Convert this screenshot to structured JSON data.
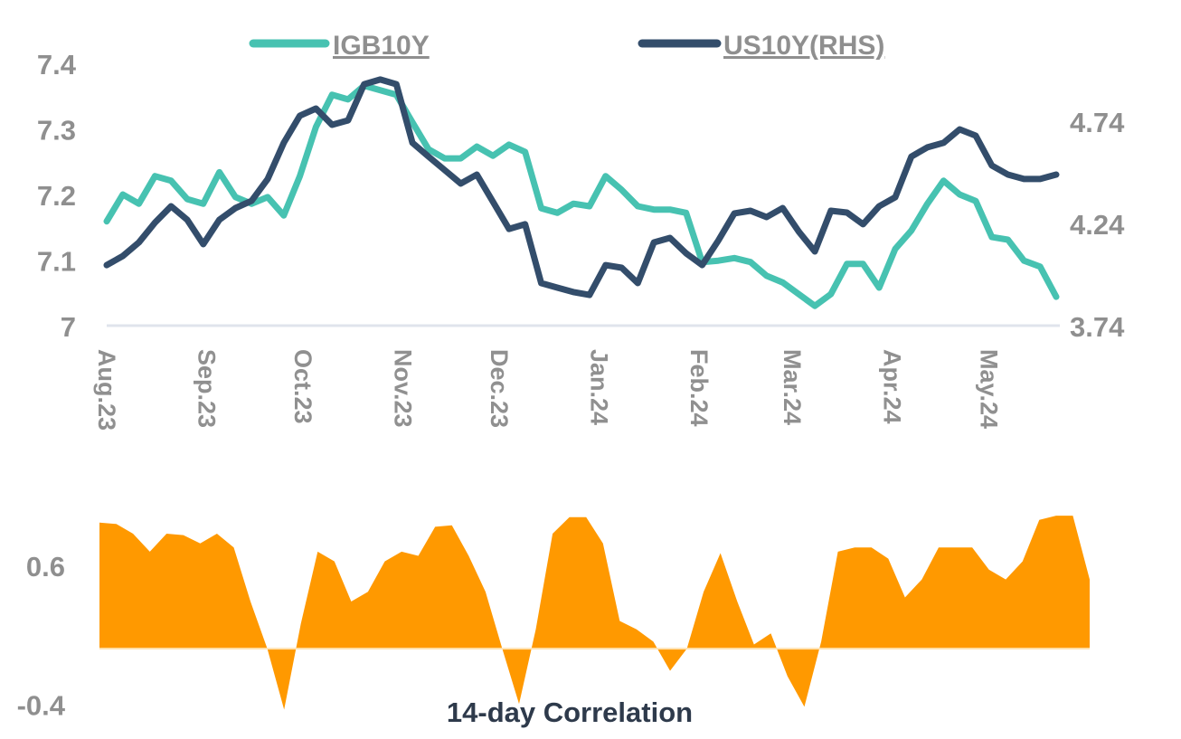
{
  "chart_data": [
    {
      "type": "line",
      "legend": [
        {
          "label": "IGB10Y",
          "color": "#47c2b1"
        },
        {
          "label": "US10Y(RHS)",
          "color": "#334d6b"
        }
      ],
      "legend_placement": "top",
      "x_tick_labels": [
        "Aug.23",
        "Sep.23",
        "Oct.23",
        "Nov.23",
        "Dec.23",
        "Jan.24",
        "Feb.24",
        "Mar.24",
        "Apr.24",
        "May.24"
      ],
      "x_tick_dates": [
        "2023-08-01",
        "2023-09-01",
        "2023-10-01",
        "2023-11-01",
        "2023-12-01",
        "2024-01-01",
        "2024-02-01",
        "2024-03-01",
        "2024-04-01",
        "2024-05-01"
      ],
      "xlim": [
        "2023-08-01",
        "2024-05-22"
      ],
      "y_left": {
        "ticks": [
          "7",
          "7.1",
          "7.2",
          "7.3",
          "7.4"
        ],
        "tick_values": [
          7,
          7.1,
          7.2,
          7.3,
          7.4
        ],
        "lim": [
          7,
          7.4
        ]
      },
      "y_right": {
        "ticks": [
          "3.74",
          "4.24",
          "4.74"
        ],
        "tick_values": [
          3.74,
          4.24,
          4.74
        ],
        "lim": [
          3.74,
          5.023
        ]
      },
      "grid": false,
      "dates": [
        "2023-08-01",
        "2023-08-06",
        "2023-08-11",
        "2023-08-16",
        "2023-08-21",
        "2023-08-26",
        "2023-08-31",
        "2023-09-05",
        "2023-09-10",
        "2023-09-15",
        "2023-09-20",
        "2023-09-25",
        "2023-09-30",
        "2023-10-05",
        "2023-10-10",
        "2023-10-15",
        "2023-10-20",
        "2023-10-25",
        "2023-10-30",
        "2023-11-04",
        "2023-11-09",
        "2023-11-14",
        "2023-11-19",
        "2023-11-24",
        "2023-11-29",
        "2023-12-04",
        "2023-12-09",
        "2023-12-14",
        "2023-12-19",
        "2023-12-24",
        "2023-12-29",
        "2024-01-03",
        "2024-01-08",
        "2024-01-13",
        "2024-01-18",
        "2024-01-23",
        "2024-01-28",
        "2024-02-02",
        "2024-02-07",
        "2024-02-12",
        "2024-02-17",
        "2024-02-22",
        "2024-02-27",
        "2024-03-03",
        "2024-03-08",
        "2024-03-13",
        "2024-03-18",
        "2024-03-23",
        "2024-03-28",
        "2024-04-02",
        "2024-04-07",
        "2024-04-12",
        "2024-04-17",
        "2024-04-22",
        "2024-04-27",
        "2024-05-02",
        "2024-05-07",
        "2024-05-12",
        "2024-05-17",
        "2024-05-22"
      ],
      "series": [
        {
          "name": "IGB10Y",
          "axis": "left",
          "color": "#47c2b1",
          "values": [
            7.159,
            7.2,
            7.186,
            7.228,
            7.221,
            7.193,
            7.186,
            7.234,
            7.196,
            7.186,
            7.196,
            7.168,
            7.228,
            7.303,
            7.352,
            7.345,
            7.366,
            7.359,
            7.352,
            7.31,
            7.269,
            7.255,
            7.255,
            7.273,
            7.259,
            7.276,
            7.265,
            7.179,
            7.172,
            7.186,
            7.182,
            7.228,
            7.207,
            7.182,
            7.177,
            7.177,
            7.172,
            7.097,
            7.099,
            7.103,
            7.097,
            7.076,
            7.066,
            7.048,
            7.03,
            7.048,
            7.094,
            7.094,
            7.058,
            7.117,
            7.145,
            7.186,
            7.221,
            7.2,
            7.19,
            7.135,
            7.131,
            7.099,
            7.09,
            7.044
          ]
        },
        {
          "name": "US10Y(RHS)",
          "axis": "right",
          "color": "#334d6b",
          "values": [
            4.036,
            4.08,
            4.147,
            4.244,
            4.324,
            4.258,
            4.138,
            4.258,
            4.315,
            4.35,
            4.457,
            4.634,
            4.767,
            4.802,
            4.722,
            4.744,
            4.921,
            4.944,
            4.921,
            4.634,
            4.567,
            4.501,
            4.435,
            4.479,
            4.346,
            4.213,
            4.236,
            3.948,
            3.926,
            3.904,
            3.89,
            4.036,
            4.023,
            3.948,
            4.147,
            4.169,
            4.094,
            4.036,
            4.156,
            4.289,
            4.302,
            4.271,
            4.315,
            4.2,
            4.103,
            4.302,
            4.293,
            4.236,
            4.324,
            4.368,
            4.567,
            4.612,
            4.634,
            4.7,
            4.669,
            4.523,
            4.479,
            4.457,
            4.457,
            4.479
          ]
        }
      ]
    },
    {
      "type": "area",
      "title": "14-day Correlation",
      "y_ticks": [
        "0.6",
        "-0.4"
      ],
      "y_tick_values": [
        0.6,
        -0.4
      ],
      "ylim": [
        -0.45,
        1.0
      ],
      "color": "#ff9900",
      "grid": false,
      "dates": [
        "2023-08-01",
        "2023-08-06",
        "2023-08-11",
        "2023-08-16",
        "2023-08-21",
        "2023-08-26",
        "2023-08-31",
        "2023-09-05",
        "2023-09-10",
        "2023-09-15",
        "2023-09-20",
        "2023-09-25",
        "2023-09-30",
        "2023-10-05",
        "2023-10-10",
        "2023-10-15",
        "2023-10-20",
        "2023-10-25",
        "2023-10-30",
        "2023-11-04",
        "2023-11-09",
        "2023-11-14",
        "2023-11-19",
        "2023-11-24",
        "2023-11-29",
        "2023-12-04",
        "2023-12-09",
        "2023-12-14",
        "2023-12-19",
        "2023-12-24",
        "2023-12-29",
        "2024-01-03",
        "2024-01-08",
        "2024-01-13",
        "2024-01-18",
        "2024-01-23",
        "2024-01-28",
        "2024-02-02",
        "2024-02-07",
        "2024-02-12",
        "2024-02-17",
        "2024-02-22",
        "2024-02-27",
        "2024-03-03",
        "2024-03-08",
        "2024-03-13",
        "2024-03-18",
        "2024-03-23",
        "2024-03-28",
        "2024-04-02",
        "2024-04-07",
        "2024-04-12",
        "2024-04-17",
        "2024-04-22",
        "2024-04-27",
        "2024-05-02",
        "2024-05-07",
        "2024-05-12",
        "2024-05-17",
        "2024-05-22"
      ],
      "values": [
        0.91,
        0.9,
        0.83,
        0.7,
        0.83,
        0.82,
        0.76,
        0.83,
        0.73,
        0.34,
        0.0,
        -0.44,
        0.18,
        0.7,
        0.63,
        0.34,
        0.41,
        0.63,
        0.7,
        0.67,
        0.88,
        0.89,
        0.67,
        0.41,
        0.0,
        -0.4,
        0.14,
        0.83,
        0.95,
        0.95,
        0.76,
        0.2,
        0.14,
        0.05,
        -0.16,
        0.0,
        0.41,
        0.69,
        0.34,
        0.03,
        0.11,
        -0.2,
        -0.42,
        0.05,
        0.7,
        0.73,
        0.73,
        0.65,
        0.37,
        0.5,
        0.73,
        0.73,
        0.73,
        0.57,
        0.5,
        0.63,
        0.93,
        0.96,
        0.96,
        0.5
      ]
    }
  ]
}
